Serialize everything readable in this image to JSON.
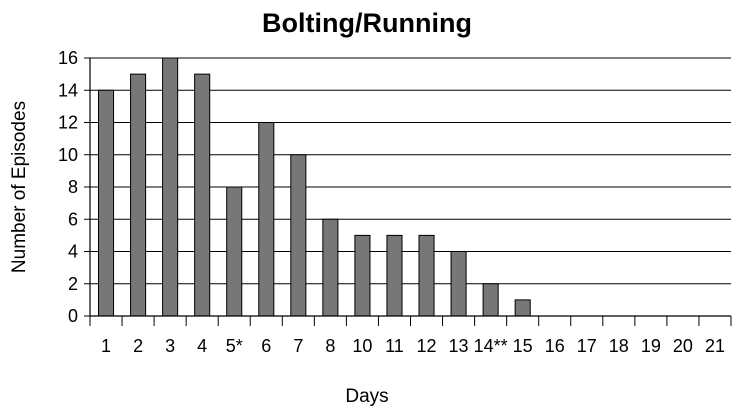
{
  "chart_data": {
    "type": "bar",
    "title": "Bolting/Running",
    "xlabel": "Days",
    "ylabel": "Number of Episodes",
    "categories": [
      "1",
      "2",
      "3",
      "4",
      "5*",
      "6",
      "7",
      "8",
      "10",
      "11",
      "12",
      "13",
      "14**",
      "15",
      "16",
      "17",
      "18",
      "19",
      "20",
      "21"
    ],
    "values": [
      14,
      15,
      16,
      15,
      8,
      12,
      10,
      6,
      5,
      5,
      5,
      4,
      2,
      1,
      0,
      0,
      0,
      0,
      0,
      0
    ],
    "ylim": [
      0,
      16
    ],
    "yticks": [
      0,
      2,
      4,
      6,
      8,
      10,
      12,
      14,
      16
    ],
    "grid": true,
    "bar_color": "#777777"
  }
}
